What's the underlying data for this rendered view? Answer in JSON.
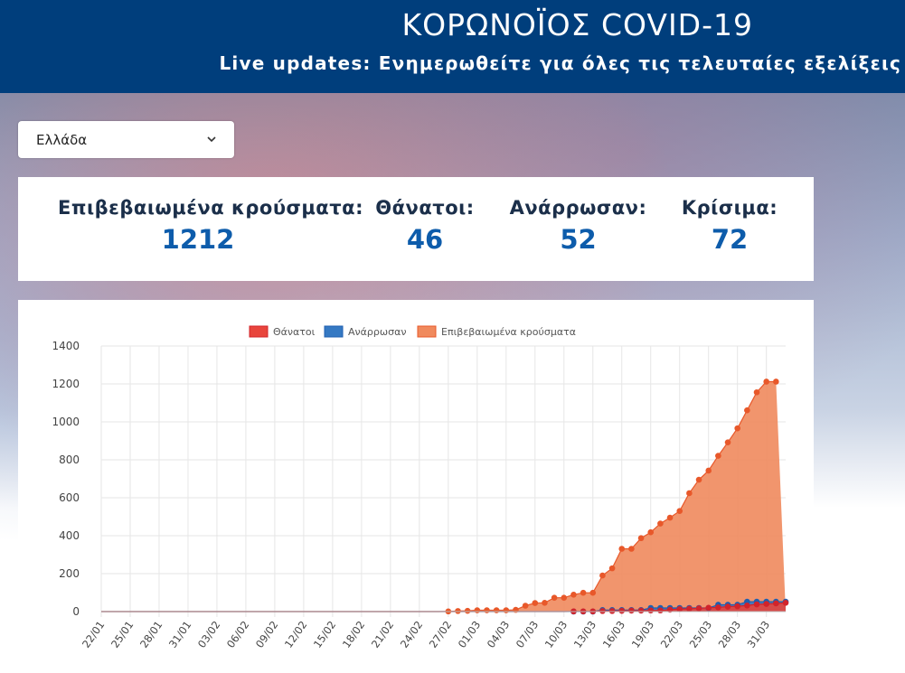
{
  "header": {
    "title": "ΚΟΡΩΝΟΪΟΣ COVID-19",
    "subtitle": "Live updates: Ενημερωθείτε για όλες τις τελευταίες εξελίξεις"
  },
  "country_select": {
    "value": "Ελλάδα",
    "icon": "chevron-down-icon"
  },
  "stats": [
    {
      "label": "Επιβεβαιωμένα κρούσματα:",
      "value": "1212"
    },
    {
      "label": "Θάνατοι:",
      "value": "46"
    },
    {
      "label": "Ανάρρωσαν:",
      "value": "52"
    },
    {
      "label": "Κρίσιμα:",
      "value": "72"
    }
  ],
  "colors": {
    "header": "#003e7c",
    "deaths": "#e8453c",
    "recovered": "#3579c3",
    "confirmed": "#f08a5d",
    "value": "#0d5cab"
  },
  "chart_data": {
    "type": "area",
    "ylim": [
      0,
      1400
    ],
    "yticks": [
      0,
      200,
      400,
      600,
      800,
      1000,
      1200,
      1400
    ],
    "xtick_labels": [
      "22/01",
      "25/01",
      "28/01",
      "31/01",
      "03/02",
      "06/02",
      "09/02",
      "12/02",
      "15/02",
      "18/02",
      "21/02",
      "24/02",
      "27/02",
      "01/03",
      "04/03",
      "07/03",
      "10/03",
      "13/03",
      "16/03",
      "19/03",
      "22/03",
      "25/03",
      "28/03",
      "31/03"
    ],
    "grid": true,
    "legend_position": "top",
    "series": [
      {
        "name": "Θάνατοι",
        "values": [
          0,
          0,
          0,
          0,
          0,
          0,
          0,
          0,
          0,
          0,
          0,
          0,
          0,
          0,
          0,
          0,
          0,
          0,
          0,
          0,
          0,
          0,
          0,
          0,
          0,
          0,
          0,
          0,
          0,
          0,
          0,
          0,
          0,
          0,
          0,
          0,
          0,
          0,
          0,
          0,
          0,
          0,
          0,
          0,
          0,
          0,
          0,
          0,
          0,
          1,
          1,
          1,
          3,
          3,
          4,
          5,
          5,
          6,
          6,
          10,
          13,
          15,
          17,
          20,
          22,
          26,
          28,
          32,
          38,
          40,
          43,
          46
        ]
      },
      {
        "name": "Ανάρρωσαν",
        "values": [
          0,
          0,
          0,
          0,
          0,
          0,
          0,
          0,
          0,
          0,
          0,
          0,
          0,
          0,
          0,
          0,
          0,
          0,
          0,
          0,
          0,
          0,
          0,
          0,
          0,
          0,
          0,
          0,
          0,
          0,
          0,
          0,
          0,
          0,
          0,
          0,
          0,
          0,
          0,
          0,
          0,
          0,
          0,
          0,
          0,
          0,
          0,
          0,
          0,
          0,
          0,
          0,
          8,
          8,
          8,
          8,
          8,
          19,
          19,
          19,
          19,
          19,
          19,
          19,
          36,
          36,
          36,
          52,
          52,
          52,
          52,
          52
        ]
      },
      {
        "name": "Επιβεβαιωμένα κρούσματα",
        "values": [
          0,
          0,
          0,
          0,
          0,
          0,
          0,
          0,
          0,
          0,
          0,
          0,
          0,
          0,
          0,
          0,
          0,
          0,
          0,
          0,
          0,
          0,
          0,
          0,
          0,
          0,
          0,
          0,
          0,
          0,
          0,
          0,
          0,
          0,
          0,
          0,
          1,
          3,
          4,
          7,
          7,
          7,
          7,
          9,
          31,
          45,
          46,
          73,
          73,
          89,
          99,
          99,
          190,
          228,
          331,
          331,
          387,
          418,
          464,
          495,
          530,
          624,
          695,
          743,
          821,
          892,
          966,
          1061,
          1156,
          1212,
          1212
        ]
      }
    ]
  }
}
